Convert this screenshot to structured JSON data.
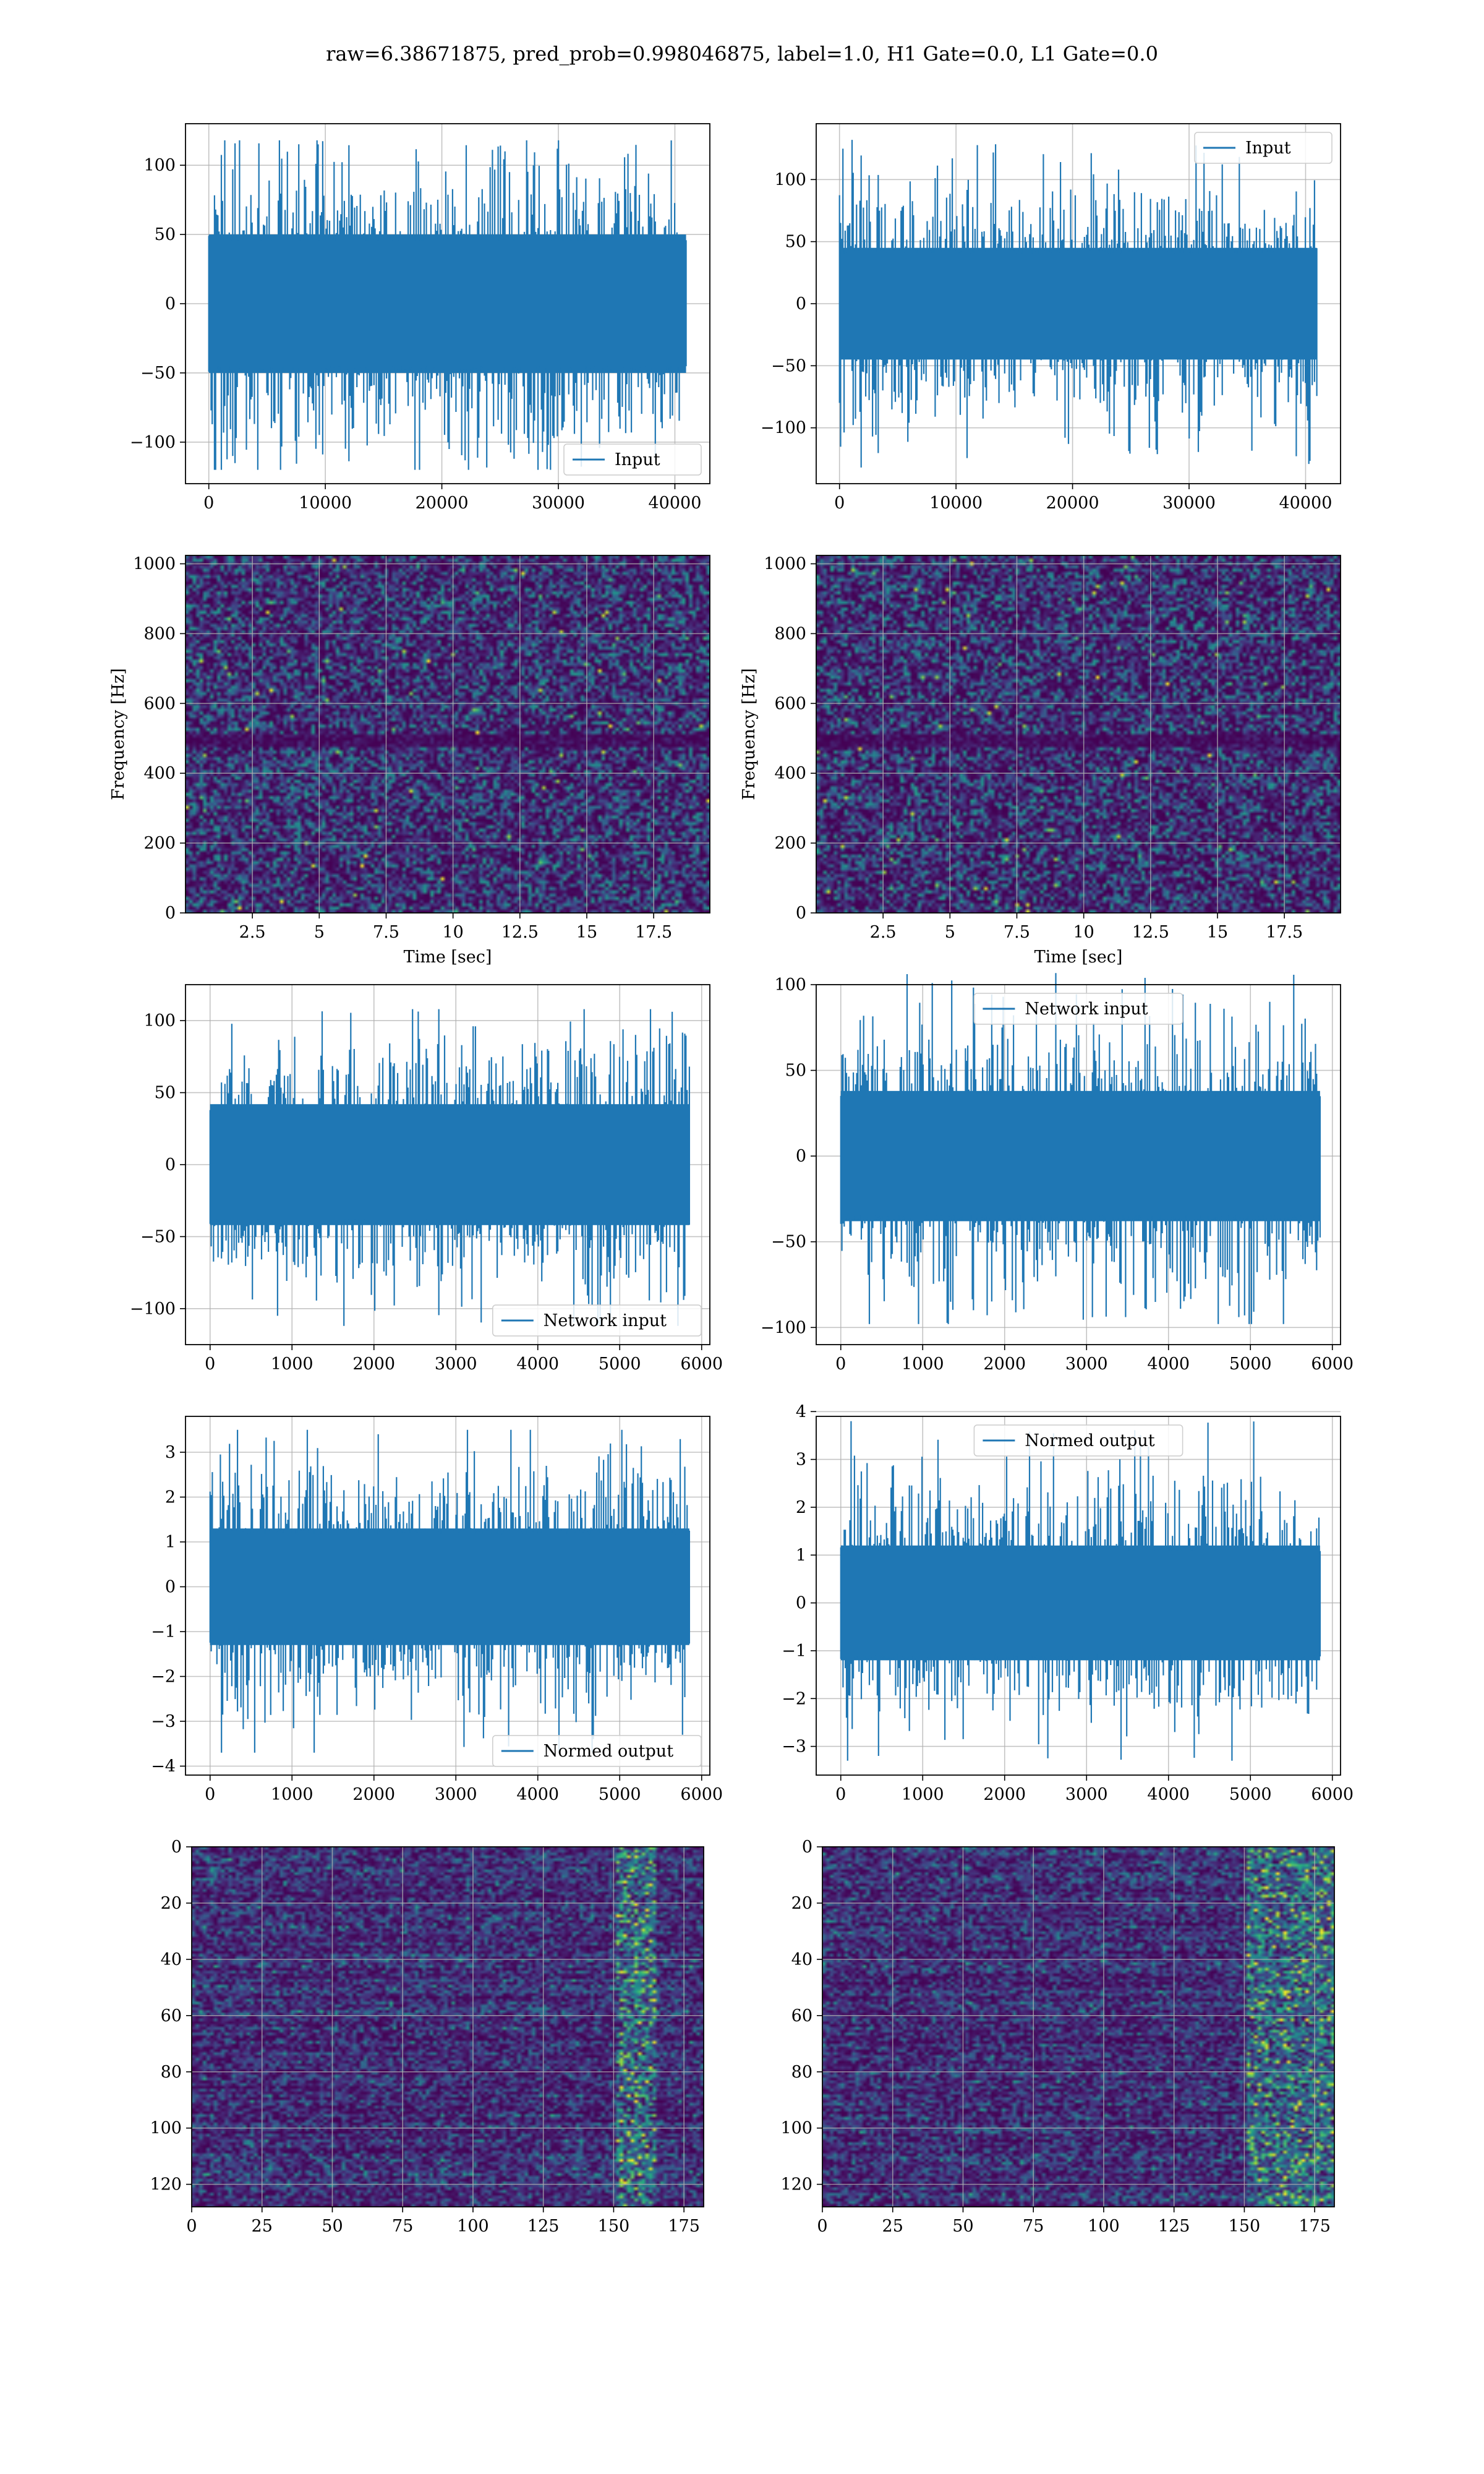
{
  "figure": {
    "suptitle": "raw=6.38671875, pred_prob=0.998046875, label=1.0, H1 Gate=0.0, L1 Gate=0.0"
  },
  "colors": {
    "line": "#1f77b4",
    "grid": "#b0b0b0",
    "viridis_low": "#440154",
    "viridis_mid": "#21918c",
    "viridis_high": "#fde725"
  },
  "chart_data": [
    {
      "id": "input-h1",
      "type": "line",
      "xlim": [
        -2000,
        43000
      ],
      "ylim": [
        -130,
        130
      ],
      "xticks": [
        0,
        10000,
        20000,
        30000,
        40000
      ],
      "yticks": [
        -100,
        -50,
        0,
        50,
        100
      ],
      "grid": true,
      "legend": "lower right",
      "series": [
        {
          "name": "Input",
          "x_range": [
            0,
            40960
          ],
          "band": [
            -50,
            50
          ],
          "extreme": [
            -120,
            118
          ]
        }
      ]
    },
    {
      "id": "input-l1",
      "type": "line",
      "xlim": [
        -2000,
        43000
      ],
      "ylim": [
        -145,
        145
      ],
      "xticks": [
        0,
        10000,
        20000,
        30000,
        40000
      ],
      "yticks": [
        -100,
        -50,
        0,
        50,
        100
      ],
      "grid": true,
      "legend": "upper right",
      "series": [
        {
          "name": "Input",
          "x_range": [
            0,
            40960
          ],
          "band": [
            -45,
            45
          ],
          "extreme": [
            -132,
            132
          ]
        }
      ]
    },
    {
      "id": "spectrogram-h1",
      "type": "heatmap",
      "xlim": [
        0,
        19.6
      ],
      "ylim": [
        0,
        1024
      ],
      "xticks": [
        2.5,
        5.0,
        7.5,
        10.0,
        12.5,
        15.0,
        17.5
      ],
      "yticks": [
        0,
        200,
        400,
        600,
        800,
        1000
      ],
      "xlabel": "Time [sec]",
      "ylabel": "Frequency [Hz]",
      "grid": true,
      "dark_band_hz": [
        480,
        520
      ]
    },
    {
      "id": "spectrogram-l1",
      "type": "heatmap",
      "xlim": [
        0,
        19.6
      ],
      "ylim": [
        0,
        1024
      ],
      "xticks": [
        2.5,
        5.0,
        7.5,
        10.0,
        12.5,
        15.0,
        17.5
      ],
      "yticks": [
        0,
        200,
        400,
        600,
        800,
        1000
      ],
      "xlabel": "Time [sec]",
      "ylabel": "Frequency [Hz]",
      "grid": true,
      "dark_band_hz": [
        480,
        520
      ]
    },
    {
      "id": "network-input-h1",
      "type": "line",
      "xlim": [
        -300,
        6100
      ],
      "ylim": [
        -125,
        125
      ],
      "xticks": [
        0,
        1000,
        2000,
        3000,
        4000,
        5000,
        6000
      ],
      "yticks": [
        -100,
        -50,
        0,
        50,
        100
      ],
      "grid": true,
      "legend": "lower right",
      "series": [
        {
          "name": "Network input",
          "x_range": [
            0,
            5850
          ],
          "band": [
            -42,
            42
          ],
          "extreme": [
            -112,
            108
          ]
        }
      ]
    },
    {
      "id": "network-input-l1",
      "type": "line",
      "xlim": [
        -300,
        6100
      ],
      "ylim": [
        -110,
        100
      ],
      "xticks": [
        0,
        1000,
        2000,
        3000,
        4000,
        5000,
        6000
      ],
      "yticks": [
        -100,
        -50,
        0,
        50,
        100
      ],
      "grid": true,
      "legend": "upper center",
      "series": [
        {
          "name": "Network input",
          "x_range": [
            0,
            5850
          ],
          "band": [
            -38,
            38
          ],
          "extreme": [
            -98,
            110
          ]
        }
      ]
    },
    {
      "id": "normed-output-h1",
      "type": "line",
      "xlim": [
        -300,
        6100
      ],
      "ylim": [
        -4.2,
        3.8
      ],
      "xticks": [
        0,
        1000,
        2000,
        3000,
        4000,
        5000,
        6000
      ],
      "yticks": [
        -4,
        -3,
        -2,
        -1,
        0,
        1,
        2,
        3
      ],
      "grid": true,
      "legend": "lower right",
      "series": [
        {
          "name": "Normed output",
          "x_range": [
            0,
            5850
          ],
          "band": [
            -1.3,
            1.3
          ],
          "extreme": [
            -3.7,
            3.5
          ]
        }
      ]
    },
    {
      "id": "normed-output-l1",
      "type": "line",
      "xlim": [
        -300,
        6100
      ],
      "ylim": [
        -3.6,
        3.9
      ],
      "xticks": [
        0,
        1000,
        2000,
        3000,
        4000,
        5000,
        6000
      ],
      "yticks": [
        -3,
        -2,
        -1,
        0,
        1,
        2,
        3,
        4
      ],
      "grid": true,
      "legend": "upper center",
      "series": [
        {
          "name": "Normed output",
          "x_range": [
            0,
            5850
          ],
          "band": [
            -1.2,
            1.2
          ],
          "extreme": [
            -3.3,
            3.8
          ]
        }
      ]
    },
    {
      "id": "features-h1",
      "type": "heatmap",
      "xlim": [
        0,
        182
      ],
      "ylim": [
        128,
        0
      ],
      "xticks": [
        0,
        25,
        50,
        75,
        100,
        125,
        150,
        175
      ],
      "yticks": [
        0,
        20,
        40,
        60,
        80,
        100,
        120
      ],
      "grid": true,
      "hot_columns": [
        150,
        165
      ]
    },
    {
      "id": "features-l1",
      "type": "heatmap",
      "xlim": [
        0,
        182
      ],
      "ylim": [
        128,
        0
      ],
      "xticks": [
        0,
        25,
        50,
        75,
        100,
        125,
        150,
        175
      ],
      "yticks": [
        0,
        20,
        40,
        60,
        80,
        100,
        120
      ],
      "grid": true,
      "hot_columns": [
        150,
        182
      ]
    }
  ]
}
